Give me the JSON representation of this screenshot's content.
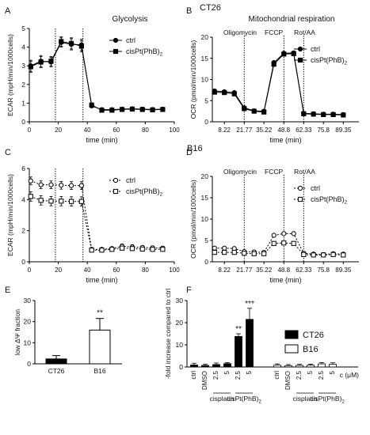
{
  "figure": {
    "section_labels": [
      "CT26",
      "B16"
    ]
  },
  "chart_data": [
    {
      "panel": "A",
      "type": "line",
      "title": "Glycolysis",
      "xlabel": "time (min)",
      "ylabel": "ECAR (mpH/min/1000cells)",
      "xlim": [
        0,
        100
      ],
      "ylim": [
        0,
        5
      ],
      "xticks": [
        "0",
        "20",
        "40",
        "60",
        "80",
        "100"
      ],
      "yticks": [
        "0",
        "1",
        "2",
        "3",
        "4",
        "5"
      ],
      "vlines": [
        18,
        37
      ],
      "legend": "top-right",
      "series": [
        {
          "name": "ctrl",
          "marker": "circle-filled",
          "x": [
            1,
            8,
            15,
            22,
            29,
            36,
            43,
            50,
            57,
            64,
            71,
            78,
            85,
            92
          ],
          "y": [
            3.0,
            3.25,
            3.2,
            4.25,
            4.15,
            4.12,
            0.85,
            0.65,
            0.65,
            0.68,
            0.7,
            0.68,
            0.66,
            0.68
          ],
          "err": [
            0.3,
            0.3,
            0.25,
            0.25,
            0.3,
            0.3,
            0.08,
            0.06,
            0.06,
            0.05,
            0.05,
            0.05,
            0.05,
            0.05
          ]
        },
        {
          "name": "cisPt(PhB)",
          "name_sub": "2",
          "marker": "square-filled",
          "x": [
            1,
            8,
            15,
            22,
            29,
            36,
            43,
            50,
            57,
            64,
            71,
            78,
            85,
            92
          ],
          "y": [
            2.95,
            3.2,
            3.25,
            4.3,
            4.2,
            4.05,
            0.9,
            0.62,
            0.62,
            0.66,
            0.68,
            0.66,
            0.64,
            0.66
          ],
          "err": [
            0.3,
            0.3,
            0.25,
            0.25,
            0.3,
            0.3,
            0.08,
            0.06,
            0.06,
            0.05,
            0.05,
            0.05,
            0.05,
            0.05
          ]
        }
      ]
    },
    {
      "panel": "B",
      "type": "line",
      "title": "Mitochondrial respiration",
      "xlabel": "time (min)",
      "ylabel": "OCR (pmol/min/1000cells)",
      "xlim": [
        0,
        100
      ],
      "ylim": [
        0,
        20
      ],
      "xticks": [
        "8.22",
        "21.77",
        "35.22",
        "48.8",
        "62.33",
        "75.8",
        "89.35"
      ],
      "yticks": [
        "0",
        "5",
        "10",
        "15",
        "20"
      ],
      "vlines": [
        21.77,
        48.8,
        62.33
      ],
      "annotations": [
        "Oligomycin",
        "FCCP",
        "Rot/AA"
      ],
      "legend": "top-right",
      "series": [
        {
          "name": "ctrl",
          "marker": "circle-filled",
          "x": [
            1.5,
            8.22,
            15,
            21.77,
            28.5,
            35.22,
            42,
            48.8,
            55.5,
            62.33,
            69,
            75.8,
            82.5,
            89.35
          ],
          "y": [
            7.3,
            7.1,
            6.9,
            3.3,
            2.6,
            2.5,
            14.0,
            16.2,
            16.3,
            2.0,
            1.9,
            1.8,
            1.8,
            1.7
          ],
          "err": [
            0.3,
            0.3,
            0.3,
            0.2,
            0.2,
            0.2,
            0.4,
            0.3,
            0.3,
            0.1,
            0.1,
            0.1,
            0.1,
            0.1
          ]
        },
        {
          "name": "cisPt(PhB)",
          "name_sub": "2",
          "marker": "square-filled",
          "x": [
            1.5,
            8.22,
            15,
            21.77,
            28.5,
            35.22,
            42,
            48.8,
            55.5,
            62.33,
            69,
            75.8,
            82.5,
            89.35
          ],
          "y": [
            7.0,
            6.9,
            6.6,
            3.1,
            2.5,
            2.3,
            13.6,
            16.0,
            16.1,
            1.9,
            1.8,
            1.7,
            1.7,
            1.6
          ],
          "err": [
            0.3,
            0.3,
            0.3,
            0.2,
            0.2,
            0.2,
            0.4,
            0.3,
            0.3,
            0.1,
            0.1,
            0.1,
            0.1,
            0.1
          ]
        }
      ]
    },
    {
      "panel": "C",
      "type": "line",
      "title": "",
      "xlabel": "time (min)",
      "ylabel": "ECAR (mpH/min/1000cells)",
      "xlim": [
        0,
        100
      ],
      "ylim": [
        0,
        6
      ],
      "xticks": [
        "0",
        "20",
        "40",
        "60",
        "80",
        "100"
      ],
      "yticks": [
        "0",
        "2",
        "4",
        "6"
      ],
      "vlines": [
        18,
        37
      ],
      "legend": "top-right",
      "series": [
        {
          "name": "ctrl",
          "marker": "circle-open",
          "x": [
            1,
            8,
            15,
            22,
            29,
            36,
            43,
            50,
            57,
            64,
            71,
            78,
            85,
            92
          ],
          "y": [
            5.2,
            4.95,
            4.95,
            4.92,
            4.9,
            4.9,
            0.8,
            0.8,
            0.85,
            1.0,
            0.95,
            0.92,
            0.9,
            0.88
          ],
          "err": [
            0.25,
            0.25,
            0.25,
            0.25,
            0.25,
            0.25,
            0.1,
            0.1,
            0.1,
            0.15,
            0.15,
            0.12,
            0.12,
            0.12
          ]
        },
        {
          "name": "cisPt(PhB)",
          "name_sub": "2",
          "marker": "square-open",
          "x": [
            1,
            8,
            15,
            22,
            29,
            36,
            43,
            50,
            57,
            64,
            71,
            78,
            85,
            92
          ],
          "y": [
            4.2,
            3.95,
            3.9,
            3.9,
            3.88,
            3.88,
            0.75,
            0.75,
            0.8,
            0.88,
            0.85,
            0.82,
            0.8,
            0.8
          ],
          "err": [
            0.3,
            0.3,
            0.3,
            0.3,
            0.3,
            0.3,
            0.1,
            0.1,
            0.1,
            0.12,
            0.12,
            0.1,
            0.1,
            0.1
          ]
        }
      ]
    },
    {
      "panel": "D",
      "type": "line",
      "title": "",
      "xlabel": "time (min)",
      "ylabel": "OCR (pmol/min/1000cells)",
      "xlim": [
        0,
        100
      ],
      "ylim": [
        0,
        20
      ],
      "xticks": [
        "8.22",
        "21.77",
        "35.22",
        "48.8",
        "62.33",
        "75.8",
        "89.35"
      ],
      "yticks": [
        "0",
        "5",
        "10",
        "15",
        "20"
      ],
      "vlines": [
        21.77,
        48.8,
        62.33
      ],
      "annotations": [
        "Oligomycin",
        "FCCP",
        "Rot/AA"
      ],
      "legend": "top-right",
      "series": [
        {
          "name": "ctrl",
          "marker": "circle-open",
          "x": [
            1.5,
            8.22,
            15,
            21.77,
            28.5,
            35.22,
            42,
            48.8,
            55.5,
            62.33,
            69,
            75.8,
            82.5,
            89.35
          ],
          "y": [
            3.2,
            3.2,
            3.1,
            2.4,
            2.3,
            2.2,
            6.2,
            6.6,
            6.6,
            2.0,
            1.8,
            1.7,
            1.9,
            1.8
          ],
          "err": [
            0.2,
            0.2,
            0.2,
            0.2,
            0.2,
            0.2,
            0.3,
            0.3,
            0.3,
            0.2,
            0.2,
            0.2,
            0.2,
            0.2
          ]
        },
        {
          "name": "cisPt(PhB)",
          "name_sub": "2",
          "marker": "square-open",
          "x": [
            1.5,
            8.22,
            15,
            21.77,
            28.5,
            35.22,
            42,
            48.8,
            55.5,
            62.33,
            69,
            75.8,
            82.5,
            89.35
          ],
          "y": [
            2.2,
            2.2,
            2.2,
            2.0,
            1.9,
            1.9,
            4.3,
            4.4,
            4.3,
            1.7,
            1.6,
            1.6,
            1.7,
            1.6
          ],
          "err": [
            0.2,
            0.2,
            0.2,
            0.2,
            0.2,
            0.2,
            0.3,
            0.3,
            0.3,
            0.2,
            0.2,
            0.2,
            0.2,
            0.2
          ]
        }
      ]
    },
    {
      "panel": "E",
      "type": "bar",
      "title": "",
      "xlabel": "",
      "ylabel": "low ΔΨ fraction",
      "categories": [
        "CT26",
        "B16"
      ],
      "values": [
        2.3,
        16.0
      ],
      "err": [
        1.6,
        5.5
      ],
      "bar_fill": [
        "#000000",
        "#ffffff"
      ],
      "significance": [
        "",
        "**"
      ],
      "ylim": [
        0,
        30
      ],
      "yticks": [
        "0",
        "10",
        "20",
        "30"
      ]
    },
    {
      "panel": "F",
      "type": "bar",
      "title": "",
      "xlabel": "",
      "ylabel": "-fold increase compared to ctrl",
      "ylim": [
        0,
        30
      ],
      "yticks": [
        "0",
        "10",
        "20",
        "30"
      ],
      "unit_label": "c (μM)",
      "legend": "top-right",
      "series": [
        {
          "name": "CT26",
          "fill": "#000000",
          "categories": [
            "ctrl",
            "DMSO",
            "2.5",
            "5",
            "2.5",
            "5"
          ],
          "values": [
            0.9,
            0.7,
            1.1,
            1.5,
            13.8,
            21.5
          ],
          "err": [
            0.8,
            0.6,
            0.7,
            0.5,
            1.2,
            5.0
          ],
          "significance": [
            "",
            "",
            "",
            "",
            "**",
            "***"
          ]
        },
        {
          "name": "B16",
          "fill": "#ffffff",
          "categories": [
            "ctrl",
            "DMSO",
            "2.5",
            "5",
            "2.5",
            "5"
          ],
          "values": [
            0.8,
            0.6,
            0.7,
            0.8,
            1.4,
            1.2
          ],
          "err": [
            0.6,
            0.5,
            0.5,
            0.5,
            0.6,
            0.7
          ],
          "significance": [
            "",
            "",
            "",
            "",
            "",
            ""
          ]
        }
      ],
      "groups": [
        {
          "label": "cisplatin",
          "label_sub": ""
        },
        {
          "label": "cisPt(PhB)",
          "label_sub": "2"
        }
      ]
    }
  ]
}
